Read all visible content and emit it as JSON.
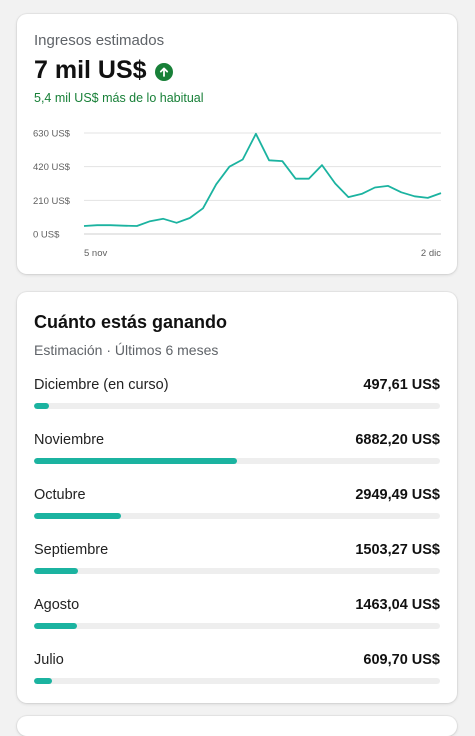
{
  "estimated_revenue": {
    "label": "Ingresos estimados",
    "value": "7 mil US$",
    "trend_icon": "arrow-up-circle-icon",
    "comparison": "5,4 mil US$ más de lo habitual",
    "accent_color": "#188038"
  },
  "chart_data": {
    "type": "line",
    "title": "",
    "xlabel": "",
    "ylabel": "",
    "x_tick_labels": [
      "5 nov",
      "2 dic"
    ],
    "y_tick_labels": [
      "0 US$",
      "210 US$",
      "420 US$",
      "630 US$"
    ],
    "y_ticks": [
      0,
      210,
      420,
      630
    ],
    "ylim": [
      0,
      630
    ],
    "grid": true,
    "line_color": "#1bb3a0",
    "series": [
      {
        "values": [
          50,
          55,
          55,
          52,
          50,
          80,
          95,
          70,
          100,
          160,
          310,
          420,
          465,
          625,
          460,
          455,
          345,
          345,
          430,
          315,
          230,
          250,
          290,
          300,
          260,
          235,
          225,
          255
        ]
      }
    ]
  },
  "earnings": {
    "title": "Cuánto estás ganando",
    "subtitle": "Estimación · Últimos 6 meses",
    "bar_color": "#1bb3a0",
    "max_amount": 13764.4,
    "months": [
      {
        "label": "Diciembre (en curso)",
        "amount": "497,61 US$",
        "value": 497.61
      },
      {
        "label": "Noviembre",
        "amount": "6882,20 US$",
        "value": 6882.2
      },
      {
        "label": "Octubre",
        "amount": "2949,49 US$",
        "value": 2949.49
      },
      {
        "label": "Septiembre",
        "amount": "1503,27 US$",
        "value": 1503.27
      },
      {
        "label": "Agosto",
        "amount": "1463,04 US$",
        "value": 1463.04
      },
      {
        "label": "Julio",
        "amount": "609,70 US$",
        "value": 609.7
      }
    ]
  }
}
